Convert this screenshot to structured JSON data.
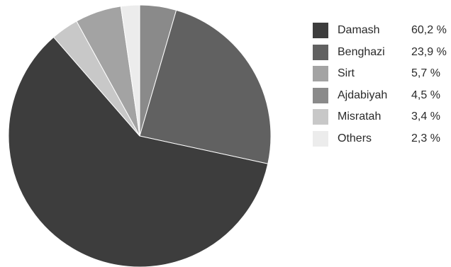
{
  "chart_data": {
    "type": "pie",
    "title": "",
    "legend_position": "right",
    "slices": [
      {
        "label": "Damash",
        "value": 60.2,
        "display": "60,2 %",
        "color": "#3d3d3d"
      },
      {
        "label": "Benghazi",
        "value": 23.9,
        "display": "23,9 %",
        "color": "#616161"
      },
      {
        "label": "Sirt",
        "value": 5.7,
        "display": "5,7 %",
        "color": "#a3a3a3"
      },
      {
        "label": "Ajdabiyah",
        "value": 4.5,
        "display": "4,5 %",
        "color": "#8a8a8a"
      },
      {
        "label": "Misratah",
        "value": 3.4,
        "display": "3,4 %",
        "color": "#c8c8c8"
      },
      {
        "label": "Others",
        "value": 2.3,
        "display": "2,3 %",
        "color": "#ececec"
      }
    ]
  }
}
